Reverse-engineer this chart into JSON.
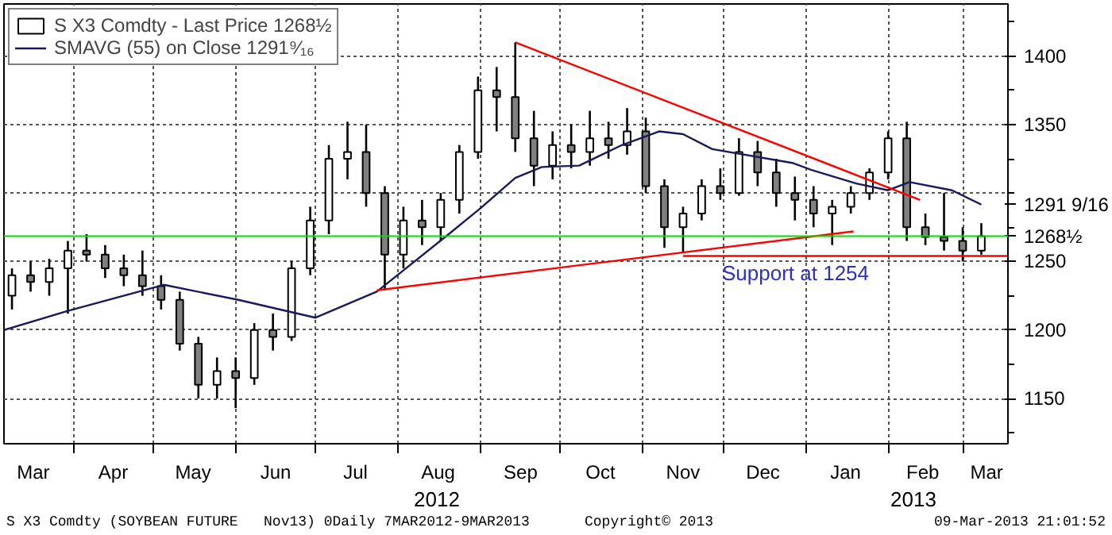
{
  "chart_data": {
    "type": "candlestick",
    "x": [
      "2012-03-09",
      "2012-03-16",
      "2012-03-23",
      "2012-03-30",
      "2012-04-06",
      "2012-04-13",
      "2012-04-20",
      "2012-04-27",
      "2012-05-04",
      "2012-05-11",
      "2012-05-18",
      "2012-05-25",
      "2012-06-01",
      "2012-06-08",
      "2012-06-15",
      "2012-06-22",
      "2012-06-29",
      "2012-07-06",
      "2012-07-13",
      "2012-07-20",
      "2012-07-27",
      "2012-08-03",
      "2012-08-10",
      "2012-08-17",
      "2012-08-24",
      "2012-08-31",
      "2012-09-07",
      "2012-09-14",
      "2012-09-21",
      "2012-09-28",
      "2012-10-05",
      "2012-10-12",
      "2012-10-19",
      "2012-10-26",
      "2012-11-02",
      "2012-11-09",
      "2012-11-16",
      "2012-11-23",
      "2012-11-30",
      "2012-12-07",
      "2012-12-14",
      "2012-12-21",
      "2012-12-28",
      "2013-01-04",
      "2013-01-11",
      "2013-01-18",
      "2013-01-25",
      "2013-02-01",
      "2013-02-08",
      "2013-02-15",
      "2013-02-22",
      "2013-03-01",
      "2013-03-08"
    ],
    "series": [
      {
        "name": "S X3 Comdty - Last Price 1268½",
        "color": "#000000",
        "ohlc": [
          [
            1225,
            1245,
            1215,
            1240
          ],
          [
            1240,
            1250,
            1228,
            1235
          ],
          [
            1235,
            1252,
            1225,
            1245
          ],
          [
            1245,
            1265,
            1212,
            1258
          ],
          [
            1258,
            1270,
            1250,
            1255
          ],
          [
            1255,
            1262,
            1238,
            1245
          ],
          [
            1245,
            1255,
            1232,
            1240
          ],
          [
            1240,
            1258,
            1225,
            1232
          ],
          [
            1232,
            1240,
            1215,
            1222
          ],
          [
            1222,
            1228,
            1185,
            1190
          ],
          [
            1190,
            1195,
            1150,
            1160
          ],
          [
            1160,
            1180,
            1150,
            1170
          ],
          [
            1170,
            1180,
            1143,
            1165
          ],
          [
            1165,
            1205,
            1160,
            1200
          ],
          [
            1200,
            1212,
            1185,
            1195
          ],
          [
            1195,
            1250,
            1192,
            1245
          ],
          [
            1245,
            1290,
            1240,
            1280
          ],
          [
            1280,
            1335,
            1270,
            1325
          ],
          [
            1325,
            1352,
            1310,
            1330
          ],
          [
            1330,
            1350,
            1290,
            1300
          ],
          [
            1300,
            1305,
            1229,
            1255
          ],
          [
            1255,
            1290,
            1245,
            1280
          ],
          [
            1280,
            1295,
            1262,
            1275
          ],
          [
            1275,
            1300,
            1265,
            1295
          ],
          [
            1295,
            1335,
            1285,
            1330
          ],
          [
            1330,
            1385,
            1325,
            1375
          ],
          [
            1375,
            1392,
            1345,
            1370
          ],
          [
            1370,
            1410,
            1330,
            1340
          ],
          [
            1340,
            1360,
            1305,
            1320
          ],
          [
            1320,
            1345,
            1310,
            1335
          ],
          [
            1335,
            1350,
            1318,
            1330
          ],
          [
            1330,
            1360,
            1320,
            1340
          ],
          [
            1340,
            1352,
            1325,
            1335
          ],
          [
            1335,
            1362,
            1328,
            1345
          ],
          [
            1345,
            1355,
            1300,
            1305
          ],
          [
            1305,
            1310,
            1260,
            1275
          ],
          [
            1275,
            1290,
            1256,
            1285
          ],
          [
            1285,
            1310,
            1280,
            1305
          ],
          [
            1305,
            1318,
            1295,
            1300
          ],
          [
            1300,
            1340,
            1298,
            1330
          ],
          [
            1330,
            1338,
            1305,
            1315
          ],
          [
            1315,
            1325,
            1290,
            1300
          ],
          [
            1300,
            1312,
            1280,
            1295
          ],
          [
            1295,
            1305,
            1275,
            1285
          ],
          [
            1285,
            1295,
            1262,
            1290
          ],
          [
            1290,
            1305,
            1285,
            1300
          ],
          [
            1300,
            1318,
            1295,
            1315
          ],
          [
            1315,
            1345,
            1310,
            1340
          ],
          [
            1340,
            1352,
            1265,
            1275
          ],
          [
            1275,
            1285,
            1262,
            1268
          ],
          [
            1268,
            1300,
            1258,
            1265
          ],
          [
            1265,
            1275,
            1250,
            1258
          ],
          [
            1258,
            1278,
            1255,
            1268.5
          ]
        ]
      },
      {
        "name": "SMAVG (55) on Close 1291⁹⁄₁₆",
        "type": "line",
        "color": "#1a1a5a",
        "x": [
          "2012-03-06",
          "2012-03-30",
          "2012-05-05",
          "2012-06-02",
          "2012-07-01",
          "2012-07-24",
          "2012-08-20",
          "2012-09-01",
          "2012-09-14",
          "2012-09-24",
          "2012-10-08",
          "2012-10-24",
          "2012-11-07",
          "2012-11-16",
          "2012-11-27",
          "2012-12-27",
          "2013-01-03",
          "2013-01-20",
          "2013-02-01",
          "2013-02-09",
          "2013-02-25",
          "2013-03-08"
        ],
        "values": [
          1200,
          1214,
          1233,
          1222,
          1209,
          1228,
          1270,
          1289,
          1311,
          1319,
          1320,
          1335,
          1345,
          1343,
          1332,
          1322,
          1317,
          1307,
          1302,
          1308,
          1302,
          1291.5625
        ]
      },
      {
        "type": "line",
        "color": "#ff0000",
        "x": [
          "2012-09-14",
          "2013-02-13"
        ],
        "values": [
          1410,
          1295
        ]
      },
      {
        "type": "line",
        "color": "#ff0000",
        "x": [
          "2012-07-24",
          "2013-01-19"
        ],
        "values": [
          1229,
          1272
        ]
      },
      {
        "type": "line",
        "color": "#ff0000",
        "x": [
          "2012-11-16",
          "2013-03-18"
        ],
        "values": [
          1254,
          1254
        ]
      }
    ],
    "ref_lines": [
      {
        "axis": "y",
        "value": 1268.5,
        "color": "#00dd00"
      }
    ],
    "xlim": [
      "2012-03-06",
      "2013-03-18"
    ],
    "xticks": [
      {
        "value": "2012-03-17",
        "label": "Mar"
      },
      {
        "value": "2012-04-01",
        "label": null
      },
      {
        "value": "2012-04-16",
        "label": "Apr"
      },
      {
        "value": "2012-05-01",
        "label": null
      },
      {
        "value": "2012-05-16",
        "label": "May"
      },
      {
        "value": "2012-06-01",
        "label": null
      },
      {
        "value": "2012-06-16",
        "label": "Jun"
      },
      {
        "value": "2012-07-01",
        "label": null
      },
      {
        "value": "2012-07-16",
        "label": "Jul"
      },
      {
        "value": "2012-08-01",
        "label": null
      },
      {
        "value": "2012-08-16",
        "label": "Aug"
      },
      {
        "value": "2012-09-01",
        "label": null
      },
      {
        "value": "2012-09-16",
        "label": "Sep"
      },
      {
        "value": "2012-10-01",
        "label": null
      },
      {
        "value": "2012-10-16",
        "label": "Oct"
      },
      {
        "value": "2012-11-01",
        "label": null
      },
      {
        "value": "2012-11-16",
        "label": "Nov"
      },
      {
        "value": "2012-12-01",
        "label": null
      },
      {
        "value": "2012-12-16",
        "label": "Dec"
      },
      {
        "value": "2013-01-01",
        "label": null
      },
      {
        "value": "2013-01-16",
        "label": "Jan"
      },
      {
        "value": "2013-02-01",
        "label": null
      },
      {
        "value": "2013-02-14",
        "label": "Feb"
      },
      {
        "value": "2013-03-01",
        "label": null
      },
      {
        "value": "2013-03-10",
        "label": "Mar"
      }
    ],
    "ylim": [
      1117,
      1438
    ],
    "yticks": [
      {
        "value": 1125,
        "label": null
      },
      1150,
      {
        "value": 1175,
        "label": null
      },
      1200,
      {
        "value": 1225,
        "label": null
      },
      1250,
      {
        "value": 1268.5,
        "label": "1268½"
      },
      {
        "value": 1275,
        "label": null
      },
      {
        "value": 1291.5625,
        "label": "1291 9/16"
      },
      {
        "value": 1300,
        "label": null
      },
      {
        "value": 1325,
        "label": null
      },
      1350,
      {
        "value": 1375,
        "label": null
      },
      1400,
      {
        "value": 1425,
        "label": null
      }
    ],
    "grid": true,
    "legend": "top left",
    "annotations": [
      "Support at 1254",
      "2012",
      "2013",
      "S X3 Comdty (SOYBEAN FUTURE   Nov13) 0Daily 7MAR2012-9MAR2013",
      "Copyright© 2013",
      "09-Mar-2013 21:01:52"
    ]
  }
}
